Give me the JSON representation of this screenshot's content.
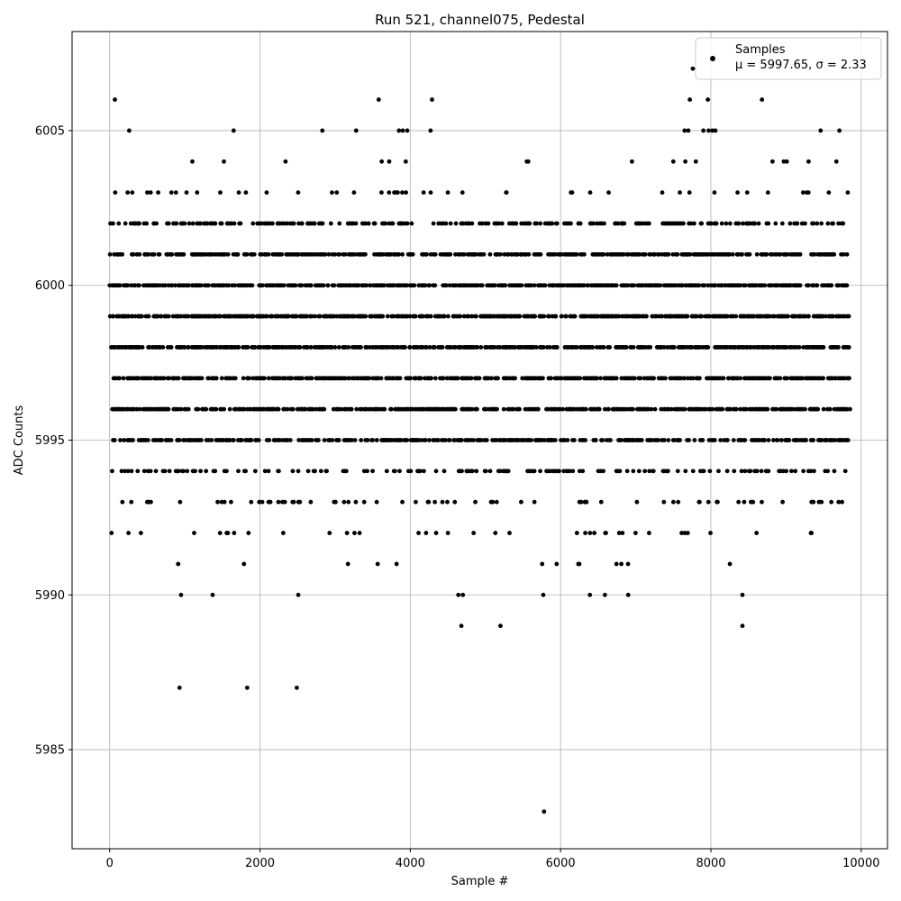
{
  "chart_data": {
    "type": "scatter",
    "title": "Run 521, channel075, Pedestal",
    "xlabel": "Sample #",
    "ylabel": "ADC Counts",
    "xlim": [
      -500,
      10350
    ],
    "ylim": [
      5981.8,
      6008.2
    ],
    "x_ticks": [
      0,
      2000,
      4000,
      6000,
      8000,
      10000
    ],
    "y_ticks": [
      5985,
      5990,
      5995,
      6000,
      6005
    ],
    "grid": true,
    "legend_position": "top-right",
    "series": [
      {
        "name": "Samples",
        "stats_label": "μ = 5997.65, σ = 2.33",
        "color": "#000000",
        "x_range": [
          0,
          9850
        ],
        "band_levels": [
          5994,
          5995,
          5996,
          5997,
          5998,
          5999,
          6000,
          6001,
          6002
        ],
        "outliers": [
          {
            "x": 70,
            "y": 6006
          },
          {
            "x": 260,
            "y": 6005
          },
          {
            "x": 1100,
            "y": 6004
          },
          {
            "x": 1520,
            "y": 6004
          },
          {
            "x": 1650,
            "y": 6005
          },
          {
            "x": 2340,
            "y": 6004
          },
          {
            "x": 2830,
            "y": 6005
          },
          {
            "x": 3280,
            "y": 6005
          },
          {
            "x": 3580,
            "y": 6006
          },
          {
            "x": 3620,
            "y": 6004
          },
          {
            "x": 3720,
            "y": 6004
          },
          {
            "x": 3850,
            "y": 6005
          },
          {
            "x": 3900,
            "y": 6005
          },
          {
            "x": 3960,
            "y": 6005
          },
          {
            "x": 3940,
            "y": 6004
          },
          {
            "x": 4270,
            "y": 6005
          },
          {
            "x": 4290,
            "y": 6006
          },
          {
            "x": 5550,
            "y": 6004
          },
          {
            "x": 5570,
            "y": 6004
          },
          {
            "x": 6950,
            "y": 6004
          },
          {
            "x": 7500,
            "y": 6004
          },
          {
            "x": 7650,
            "y": 6005
          },
          {
            "x": 7700,
            "y": 6005
          },
          {
            "x": 7660,
            "y": 6004
          },
          {
            "x": 7720,
            "y": 6006
          },
          {
            "x": 7760,
            "y": 6007
          },
          {
            "x": 7800,
            "y": 6004
          },
          {
            "x": 7900,
            "y": 6005
          },
          {
            "x": 7960,
            "y": 6006
          },
          {
            "x": 7970,
            "y": 6005
          },
          {
            "x": 8020,
            "y": 6005
          },
          {
            "x": 8060,
            "y": 6005
          },
          {
            "x": 8680,
            "y": 6006
          },
          {
            "x": 8820,
            "y": 6004
          },
          {
            "x": 8970,
            "y": 6004
          },
          {
            "x": 9010,
            "y": 6004
          },
          {
            "x": 9300,
            "y": 6004
          },
          {
            "x": 9460,
            "y": 6005
          },
          {
            "x": 9670,
            "y": 6004
          },
          {
            "x": 9710,
            "y": 6005
          },
          {
            "x": 950,
            "y": 5990
          },
          {
            "x": 1370,
            "y": 5990
          },
          {
            "x": 2510,
            "y": 5990
          },
          {
            "x": 4640,
            "y": 5990
          },
          {
            "x": 4700,
            "y": 5990
          },
          {
            "x": 5770,
            "y": 5990
          },
          {
            "x": 6390,
            "y": 5990
          },
          {
            "x": 6590,
            "y": 5990
          },
          {
            "x": 6900,
            "y": 5990
          },
          {
            "x": 8420,
            "y": 5990
          },
          {
            "x": 4680,
            "y": 5989
          },
          {
            "x": 5200,
            "y": 5989
          },
          {
            "x": 8420,
            "y": 5989
          },
          {
            "x": 930,
            "y": 5987
          },
          {
            "x": 1830,
            "y": 5987
          },
          {
            "x": 2490,
            "y": 5987
          },
          {
            "x": 5780,
            "y": 5983
          }
        ]
      }
    ]
  }
}
